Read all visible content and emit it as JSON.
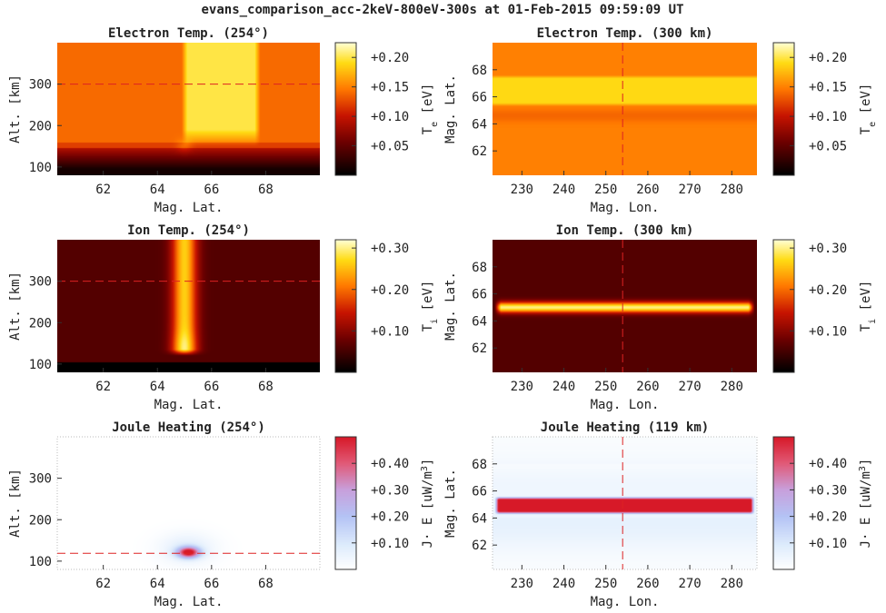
{
  "figure_title": "evans_comparison_acc-2keV-800eV-300s at 01-Feb-2015 09:59:09 UT",
  "chart_data": [
    {
      "type": "heatmap",
      "title": "Electron Temp. (254°)",
      "xlabel": "Mag. Lat.",
      "ylabel": "Alt. [km]",
      "xlim": [
        60.3,
        70.0
      ],
      "ylim": [
        80,
        400
      ],
      "xticks": [
        62,
        64,
        66,
        68
      ],
      "yticks": [
        100,
        200,
        300
      ],
      "cut_line": {
        "axis": "y",
        "value": 300
      },
      "colorbar": {
        "label": "T",
        "label_sub": "e",
        "label_unit": "[eV]",
        "colormap": "hot",
        "ticks": [
          "+0.05",
          "+0.10",
          "+0.15",
          "+0.20"
        ],
        "tick_values": [
          0.05,
          0.1,
          0.15,
          0.2
        ],
        "range": [
          0.0,
          0.225
        ]
      },
      "field": {
        "model": "electron_alt"
      }
    },
    {
      "type": "heatmap",
      "title": "Electron Temp. (300 km)",
      "xlabel": "Mag. Lon.",
      "ylabel": "Mag. Lat.",
      "xlim": [
        223,
        286
      ],
      "ylim": [
        60.2,
        70.0
      ],
      "xticks": [
        230,
        240,
        250,
        260,
        270,
        280
      ],
      "yticks": [
        62,
        64,
        66,
        68
      ],
      "cut_line": {
        "axis": "x",
        "value": 254
      },
      "colorbar": {
        "label": "T",
        "label_sub": "e",
        "label_unit": "[eV]",
        "colormap": "hot",
        "ticks": [
          "+0.05",
          "+0.10",
          "+0.15",
          "+0.20"
        ],
        "tick_values": [
          0.05,
          0.1,
          0.15,
          0.2
        ],
        "range": [
          0.0,
          0.225
        ]
      },
      "field": {
        "model": "electron_lon"
      }
    },
    {
      "type": "heatmap",
      "title": "Ion Temp. (254°)",
      "xlabel": "Mag. Lat.",
      "ylabel": "Alt. [km]",
      "xlim": [
        60.3,
        70.0
      ],
      "ylim": [
        80,
        400
      ],
      "xticks": [
        62,
        64,
        66,
        68
      ],
      "yticks": [
        100,
        200,
        300
      ],
      "cut_line": {
        "axis": "y",
        "value": 300
      },
      "colorbar": {
        "label": "T",
        "label_sub": "i",
        "label_unit": "[eV]",
        "colormap": "hot",
        "ticks": [
          "+0.10",
          "+0.20",
          "+0.30"
        ],
        "tick_values": [
          0.1,
          0.2,
          0.3
        ],
        "range": [
          0.0,
          0.32
        ]
      },
      "field": {
        "model": "ion_alt"
      }
    },
    {
      "type": "heatmap",
      "title": "Ion Temp. (300 km)",
      "xlabel": "Mag. Lon.",
      "ylabel": "Mag. Lat.",
      "xlim": [
        223,
        286
      ],
      "ylim": [
        60.2,
        70.0
      ],
      "xticks": [
        230,
        240,
        250,
        260,
        270,
        280
      ],
      "yticks": [
        62,
        64,
        66,
        68
      ],
      "cut_line": {
        "axis": "x",
        "value": 254
      },
      "colorbar": {
        "label": "T",
        "label_sub": "i",
        "label_unit": "[eV]",
        "colormap": "hot",
        "ticks": [
          "+0.10",
          "+0.20",
          "+0.30"
        ],
        "tick_values": [
          0.1,
          0.2,
          0.3
        ],
        "range": [
          0.0,
          0.32
        ]
      },
      "field": {
        "model": "ion_lon"
      }
    },
    {
      "type": "heatmap",
      "title": "Joule Heating (254°)",
      "xlabel": "Mag. Lat.",
      "ylabel": "Alt. [km]",
      "xlim": [
        60.3,
        70.0
      ],
      "ylim": [
        80,
        400
      ],
      "xticks": [
        62,
        64,
        66,
        68
      ],
      "yticks": [
        100,
        200,
        300
      ],
      "cut_line": {
        "axis": "y",
        "value": 119
      },
      "colorbar": {
        "label": "J· E [uW/m",
        "label_sup": "3",
        "label_end": "]",
        "colormap": "bwr_white",
        "ticks": [
          "+0.10",
          "+0.20",
          "+0.30",
          "+0.40"
        ],
        "tick_values": [
          0.1,
          0.2,
          0.3,
          0.4
        ],
        "range": [
          0.0,
          0.5
        ]
      },
      "field": {
        "model": "joule_alt"
      }
    },
    {
      "type": "heatmap",
      "title": "Joule Heating (119 km)",
      "xlabel": "Mag. Lon.",
      "ylabel": "Mag. Lat.",
      "xlim": [
        223,
        286
      ],
      "ylim": [
        60.2,
        70.0
      ],
      "xticks": [
        230,
        240,
        250,
        260,
        270,
        280
      ],
      "yticks": [
        62,
        64,
        66,
        68
      ],
      "cut_line": {
        "axis": "x",
        "value": 254
      },
      "colorbar": {
        "label": "J· E [uW/m",
        "label_sup": "3",
        "label_end": "]",
        "colormap": "bwr_white",
        "ticks": [
          "+0.10",
          "+0.20",
          "+0.30",
          "+0.40"
        ],
        "tick_values": [
          0.1,
          0.2,
          0.3,
          0.4
        ],
        "range": [
          0.0,
          0.5
        ]
      },
      "field": {
        "model": "joule_lon"
      }
    }
  ]
}
